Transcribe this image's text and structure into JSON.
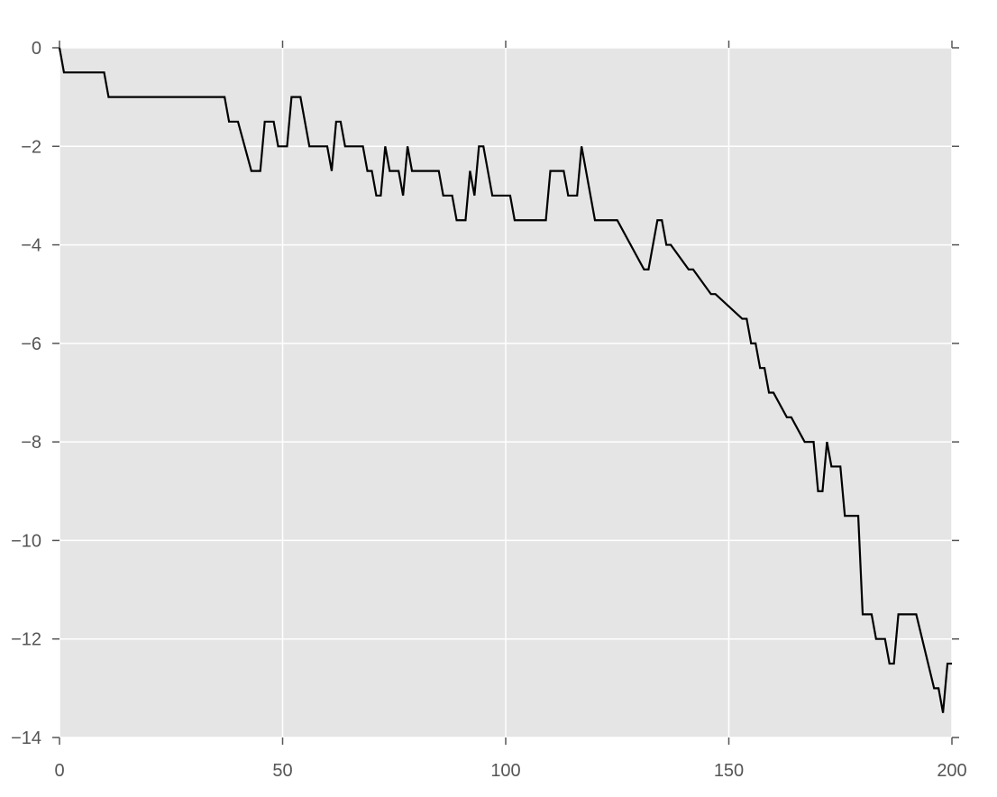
{
  "chart_data": {
    "type": "line",
    "title": "",
    "xlabel": "",
    "ylabel": "",
    "xlim": [
      0,
      200
    ],
    "ylim": [
      -14,
      0
    ],
    "grid": true,
    "background_color": "#e5e5e5",
    "grid_color": "#ffffff",
    "line_color": "#000000",
    "xticks": [
      0,
      50,
      100,
      150,
      200
    ],
    "xtick_labels": [
      "0",
      "50",
      "100",
      "150",
      "200"
    ],
    "yticks": [
      0,
      -2,
      -4,
      -6,
      -8,
      -10,
      -12,
      -14
    ],
    "ytick_labels": [
      "0",
      "−2",
      "−4",
      "−6",
      "−8",
      "−10",
      "−12",
      "−14"
    ],
    "series": [
      {
        "x": [
          0,
          1,
          10,
          11,
          37,
          38,
          40,
          43,
          45,
          46,
          48,
          49,
          51,
          52,
          54,
          56,
          60,
          61,
          62,
          63,
          64,
          68,
          69,
          70,
          71,
          72,
          73,
          74,
          76,
          77,
          78,
          79,
          85,
          86,
          88,
          89,
          91,
          92,
          93,
          94,
          95,
          97,
          101,
          102,
          109,
          110,
          113,
          114,
          116,
          117,
          120,
          125,
          131,
          132,
          134,
          135,
          136,
          137,
          141,
          142,
          146,
          147,
          153,
          154,
          155,
          156,
          157,
          158,
          159,
          160,
          163,
          164,
          167,
          169,
          170,
          171,
          172,
          173,
          175,
          176,
          179,
          180,
          182,
          183,
          185,
          186,
          187,
          188,
          192,
          196,
          197,
          198,
          199,
          200
        ],
        "y": [
          0,
          -0.5,
          -0.5,
          -1,
          -1,
          -1.5,
          -1.5,
          -2.5,
          -2.5,
          -1.5,
          -1.5,
          -2,
          -2,
          -1,
          -1,
          -2,
          -2,
          -2.5,
          -1.5,
          -1.5,
          -2,
          -2,
          -2.5,
          -2.5,
          -3,
          -3,
          -2,
          -2.5,
          -2.5,
          -3,
          -2,
          -2.5,
          -2.5,
          -3,
          -3,
          -3.5,
          -3.5,
          -2.5,
          -3,
          -2,
          -2,
          -3,
          -3,
          -3.5,
          -3.5,
          -2.5,
          -2.5,
          -3,
          -3,
          -2,
          -3.5,
          -3.5,
          -4.5,
          -4.5,
          -3.5,
          -3.5,
          -4,
          -4,
          -4.5,
          -4.5,
          -5,
          -5,
          -5.5,
          -5.5,
          -6,
          -6,
          -6.5,
          -6.5,
          -7,
          -7,
          -7.5,
          -7.5,
          -8,
          -8,
          -9,
          -9,
          -8,
          -8.5,
          -8.5,
          -9.5,
          -9.5,
          -11.5,
          -11.5,
          -12,
          -12,
          -12.5,
          -12.5,
          -11.5,
          -11.5,
          -13,
          -13,
          -13.5,
          -12.5,
          -12.5
        ]
      }
    ]
  }
}
